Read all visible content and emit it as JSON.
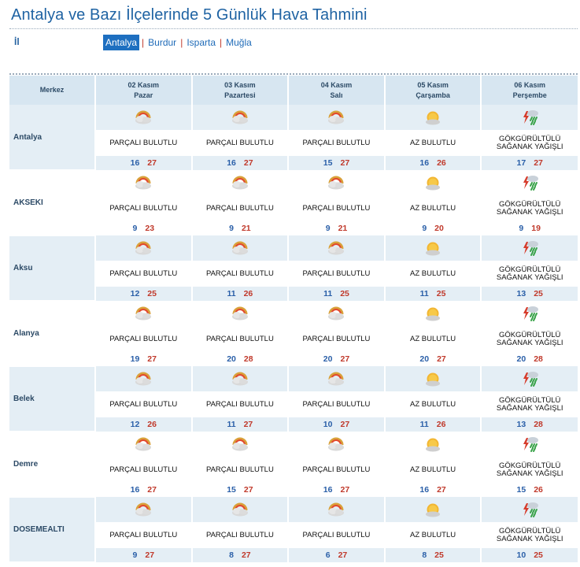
{
  "page": {
    "title": "Antalya ve Bazı İlçelerinde 5 Günlük Hava Tahmini",
    "il_label": "İl",
    "provinces": [
      {
        "label": "Antalya",
        "active": true
      },
      {
        "label": "Burdur",
        "active": false
      },
      {
        "label": "Isparta",
        "active": false
      },
      {
        "label": "Muğla",
        "active": false
      }
    ],
    "separator": "|"
  },
  "table": {
    "merkez_header": "Merkez",
    "days": [
      {
        "date": "02 Kasım",
        "weekday": "Pazar"
      },
      {
        "date": "03 Kasım",
        "weekday": "Pazartesi"
      },
      {
        "date": "04 Kasım",
        "weekday": "Salı"
      },
      {
        "date": "05 Kasım",
        "weekday": "Çarşamba"
      },
      {
        "date": "06 Kasım",
        "weekday": "Perşembe"
      }
    ],
    "conditions": {
      "partly": {
        "text": "PARÇALI BULUTLU",
        "icon": "partly-cloudy-icon"
      },
      "few": {
        "text": "AZ BULUTLU",
        "icon": "sun-cloud-icon"
      },
      "storm": {
        "text": "GÖKGÜRÜLTÜLÜ SAĞANAK YAĞIŞLI",
        "icon": "thunderstorm-icon"
      }
    },
    "rows": [
      {
        "city": "Antalya",
        "shaded": true,
        "forecasts": [
          {
            "cond": "partly",
            "min": "16",
            "max": "27"
          },
          {
            "cond": "partly",
            "min": "16",
            "max": "27"
          },
          {
            "cond": "partly",
            "min": "15",
            "max": "27"
          },
          {
            "cond": "few",
            "min": "16",
            "max": "26"
          },
          {
            "cond": "storm",
            "min": "17",
            "max": "27"
          }
        ]
      },
      {
        "city": "AKSEKI",
        "shaded": false,
        "forecasts": [
          {
            "cond": "partly",
            "min": "9",
            "max": "23"
          },
          {
            "cond": "partly",
            "min": "9",
            "max": "21"
          },
          {
            "cond": "partly",
            "min": "9",
            "max": "21"
          },
          {
            "cond": "few",
            "min": "9",
            "max": "20"
          },
          {
            "cond": "storm",
            "min": "9",
            "max": "19"
          }
        ]
      },
      {
        "city": "Aksu",
        "shaded": true,
        "forecasts": [
          {
            "cond": "partly",
            "min": "12",
            "max": "25"
          },
          {
            "cond": "partly",
            "min": "11",
            "max": "26"
          },
          {
            "cond": "partly",
            "min": "11",
            "max": "25"
          },
          {
            "cond": "few",
            "min": "11",
            "max": "25"
          },
          {
            "cond": "storm",
            "min": "13",
            "max": "25"
          }
        ]
      },
      {
        "city": "Alanya",
        "shaded": false,
        "forecasts": [
          {
            "cond": "partly",
            "min": "19",
            "max": "27"
          },
          {
            "cond": "partly",
            "min": "20",
            "max": "28"
          },
          {
            "cond": "partly",
            "min": "20",
            "max": "27"
          },
          {
            "cond": "few",
            "min": "20",
            "max": "27"
          },
          {
            "cond": "storm",
            "min": "20",
            "max": "28"
          }
        ]
      },
      {
        "city": "Belek",
        "shaded": true,
        "forecasts": [
          {
            "cond": "partly",
            "min": "12",
            "max": "26"
          },
          {
            "cond": "partly",
            "min": "11",
            "max": "27"
          },
          {
            "cond": "partly",
            "min": "10",
            "max": "27"
          },
          {
            "cond": "few",
            "min": "11",
            "max": "26"
          },
          {
            "cond": "storm",
            "min": "13",
            "max": "28"
          }
        ]
      },
      {
        "city": "Demre",
        "shaded": false,
        "forecasts": [
          {
            "cond": "partly",
            "min": "16",
            "max": "27"
          },
          {
            "cond": "partly",
            "min": "15",
            "max": "27"
          },
          {
            "cond": "partly",
            "min": "16",
            "max": "27"
          },
          {
            "cond": "few",
            "min": "16",
            "max": "27"
          },
          {
            "cond": "storm",
            "min": "15",
            "max": "26"
          }
        ]
      },
      {
        "city": "DOSEMEALTI",
        "shaded": true,
        "forecasts": [
          {
            "cond": "partly",
            "min": "9",
            "max": "27"
          },
          {
            "cond": "partly",
            "min": "8",
            "max": "27"
          },
          {
            "cond": "partly",
            "min": "6",
            "max": "27"
          },
          {
            "cond": "few",
            "min": "8",
            "max": "25"
          },
          {
            "cond": "storm",
            "min": "10",
            "max": "25"
          }
        ]
      }
    ]
  },
  "colors": {
    "title": "#1f63a3",
    "header_bg": "#d7e6f1",
    "row_shade": "#e4eef5",
    "min_temp": "#2a5fa8",
    "max_temp": "#c0392b",
    "active_tab": "#1e6fc0"
  }
}
